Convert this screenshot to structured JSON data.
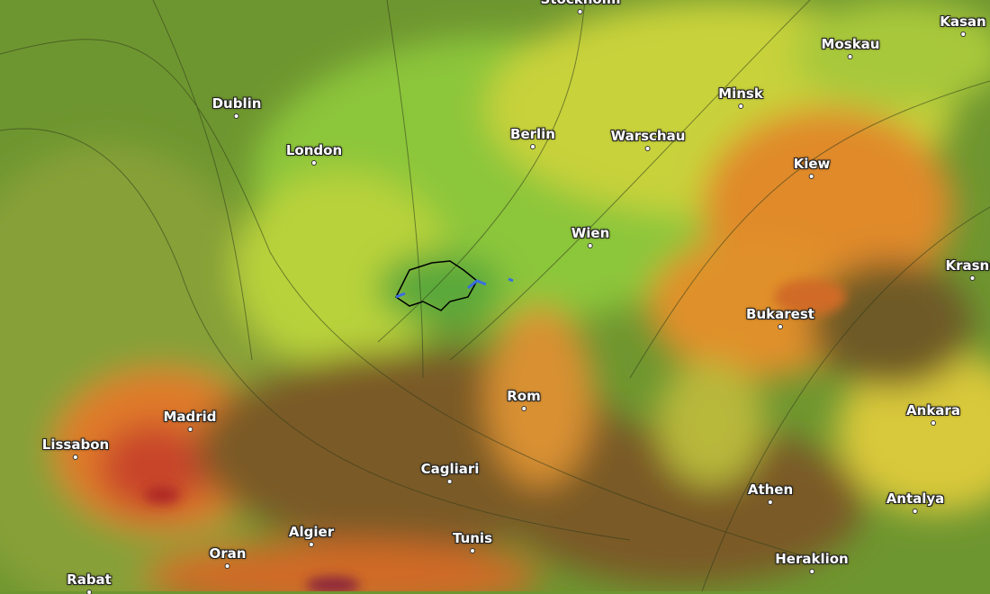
{
  "map": {
    "type": "weather-temperature-map",
    "colors": {
      "ocean_north": "#6e9630",
      "land_cool": "#8cc63a",
      "land_mild": "#c8d23a",
      "land_warm": "#e08a2a",
      "land_hot": "#c8452a",
      "sea_warm": "#7a5a28",
      "highlight_border": "#000000",
      "lakes": "#3a6ee0"
    },
    "cities": [
      {
        "name": "Stockholm"
      },
      {
        "name": "Kasan"
      },
      {
        "name": "Moskau"
      },
      {
        "name": "Minsk"
      },
      {
        "name": "Dublin"
      },
      {
        "name": "Berlin"
      },
      {
        "name": "Warschau"
      },
      {
        "name": "London"
      },
      {
        "name": "Kiew"
      },
      {
        "name": "Wien"
      },
      {
        "name": "Krasno"
      },
      {
        "name": "Bukarest"
      },
      {
        "name": "Rom"
      },
      {
        "name": "Ankara"
      },
      {
        "name": "Madrid"
      },
      {
        "name": "Lissabon"
      },
      {
        "name": "Cagliari"
      },
      {
        "name": "Athen"
      },
      {
        "name": "Antalya"
      },
      {
        "name": "Algier"
      },
      {
        "name": "Tunis"
      },
      {
        "name": "Oran"
      },
      {
        "name": "Heraklion"
      },
      {
        "name": "Rabat"
      }
    ]
  }
}
